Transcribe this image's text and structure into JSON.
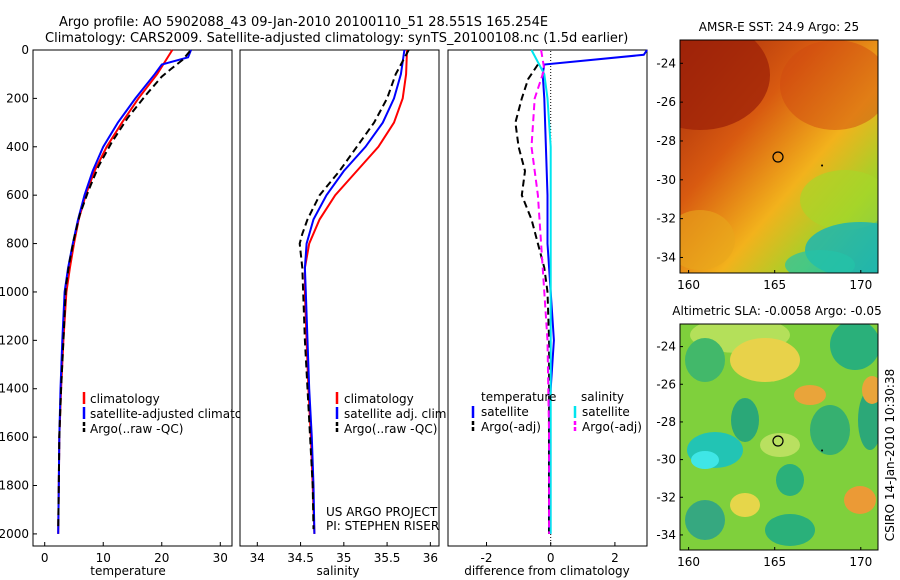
{
  "header": {
    "title_line1": "Argo profile: AO 5902088_43 09-Jan-2010 20100110_51 28.551S 165.254E",
    "title_line2": "Climatology: CARS2009. Satellite-adjusted climatology: synTS_20100108.nc (1.5d earlier)"
  },
  "credits": {
    "project": "US ARGO PROJECT",
    "pi": "PI: STEPHEN RISER",
    "stamp": "CSIRO 14-Jan-2010 10:30:38"
  },
  "colors": {
    "climatology": "#ff0000",
    "satellite": "#0000ff",
    "argo": "#000000",
    "sat_salinity": "#00e5ee",
    "argo_salinity": "#ff00ff"
  },
  "chart_data": [
    {
      "type": "line",
      "title": "",
      "xlabel": "temperature",
      "ylabel": "",
      "xlim": [
        -2,
        32
      ],
      "ylim": [
        2050,
        0
      ],
      "xticks": [
        "0",
        "10",
        "20",
        "30"
      ],
      "yticks": [
        "0",
        "200",
        "400",
        "600",
        "800",
        "1000",
        "1200",
        "1400",
        "1600",
        "1800",
        "2000"
      ],
      "legend": [
        "climatology",
        "satellite-adjusted climatology",
        "Argo(..raw -QC)"
      ],
      "series": [
        {
          "name": "climatology",
          "color": "#ff0000",
          "dash": "",
          "x": [
            21.8,
            20.5,
            19.2,
            16.0,
            13.2,
            10.6,
            8.5,
            7.0,
            5.8,
            5.0,
            4.3,
            3.7,
            3.2,
            2.8,
            2.5,
            2.4,
            2.3
          ],
          "y": [
            0,
            50,
            100,
            200,
            300,
            400,
            500,
            600,
            700,
            800,
            900,
            1000,
            1200,
            1400,
            1600,
            1800,
            2000
          ]
        },
        {
          "name": "satellite-adjusted climatology",
          "color": "#0000ff",
          "dash": "",
          "x": [
            25.0,
            24.5,
            20.0,
            18.8,
            15.5,
            12.5,
            10.0,
            8.2,
            6.8,
            5.7,
            4.8,
            4.0,
            3.4,
            3.0,
            2.7,
            2.5,
            2.4,
            2.3
          ],
          "y": [
            0,
            30,
            60,
            100,
            200,
            300,
            400,
            500,
            600,
            700,
            800,
            900,
            1000,
            1200,
            1400,
            1600,
            1800,
            2000
          ]
        },
        {
          "name": "Argo(..raw -QC)",
          "color": "#000000",
          "dash": "7,4",
          "x": [
            24.8,
            23.6,
            21.5,
            20.0,
            17.5,
            14.2,
            11.5,
            9.2,
            7.5,
            6.0,
            5.0,
            4.2,
            3.6,
            3.2,
            2.8,
            2.5,
            2.4,
            2.3
          ],
          "y": [
            5,
            40,
            80,
            110,
            180,
            280,
            380,
            480,
            580,
            680,
            780,
            880,
            980,
            1200,
            1400,
            1600,
            1800,
            1980
          ]
        }
      ]
    },
    {
      "type": "line",
      "title": "",
      "xlabel": "salinity",
      "ylabel": "",
      "xlim": [
        33.8,
        36.1
      ],
      "ylim": [
        2050,
        0
      ],
      "xticks": [
        "34",
        "34.5",
        "35",
        "35.5",
        "36"
      ],
      "legend": [
        "climatology",
        "satellite adj. clim.",
        "Argo(..raw -QC)"
      ],
      "series": [
        {
          "name": "climatology",
          "color": "#ff0000",
          "dash": "",
          "x": [
            35.73,
            35.72,
            35.68,
            35.58,
            35.4,
            35.15,
            34.9,
            34.72,
            34.6,
            34.55,
            34.55,
            34.57,
            34.59,
            34.62,
            34.64,
            34.66
          ],
          "y": [
            0,
            100,
            200,
            300,
            400,
            500,
            600,
            700,
            800,
            900,
            1000,
            1200,
            1400,
            1600,
            1800,
            2000
          ]
        },
        {
          "name": "satellite adj. clim.",
          "color": "#0000ff",
          "dash": "",
          "x": [
            35.7,
            35.66,
            35.58,
            35.45,
            35.25,
            35.0,
            34.8,
            34.65,
            34.57,
            34.55,
            34.56,
            34.58,
            34.6,
            34.63,
            34.65,
            34.66
          ],
          "y": [
            0,
            100,
            200,
            300,
            400,
            500,
            600,
            700,
            800,
            900,
            1000,
            1200,
            1400,
            1600,
            1800,
            2000
          ]
        },
        {
          "name": "Argo(..raw -QC)",
          "color": "#000000",
          "dash": "7,4",
          "x": [
            35.75,
            35.6,
            35.5,
            35.35,
            35.15,
            34.95,
            34.72,
            34.58,
            34.52,
            34.49,
            34.52,
            34.55,
            34.58,
            34.61,
            34.64,
            34.65
          ],
          "y": [
            0,
            100,
            200,
            300,
            400,
            500,
            600,
            700,
            760,
            800,
            900,
            1200,
            1400,
            1600,
            1800,
            1980
          ]
        }
      ]
    },
    {
      "type": "line",
      "title": "",
      "xlabel": "difference from climatology",
      "ylabel": "",
      "xlim": [
        -3.2,
        3.0
      ],
      "ylim": [
        2050,
        0
      ],
      "xticks": [
        "-2",
        "0",
        "2"
      ],
      "legend_temperature_heading": "temperature",
      "legend_salinity_heading": "salinity",
      "legend_temperature": [
        "satellite",
        "Argo(-adj)"
      ],
      "legend_salinity": [
        "satellite",
        "Argo(-adj)"
      ],
      "series": [
        {
          "name": "temperature satellite",
          "color": "#0000ff",
          "dash": "",
          "x": [
            3.0,
            2.9,
            -0.2,
            -0.25,
            -0.2,
            -0.15,
            -0.1,
            -0.1,
            -0.05,
            0.0,
            0.05,
            0.1,
            0.05,
            0.0,
            -0.05,
            -0.05,
            -0.05
          ],
          "y": [
            0,
            20,
            60,
            100,
            200,
            400,
            600,
            800,
            900,
            1000,
            1100,
            1200,
            1300,
            1400,
            1600,
            1800,
            2000
          ]
        },
        {
          "name": "temperature Argo(-adj)",
          "color": "#000000",
          "dash": "7,4",
          "x": [
            -0.4,
            -0.7,
            -0.9,
            -1.1,
            -1.0,
            -0.8,
            -0.9,
            -0.6,
            -0.4,
            -0.2,
            -0.1,
            -0.05,
            -0.05,
            -0.05
          ],
          "y": [
            60,
            120,
            200,
            300,
            400,
            500,
            600,
            700,
            800,
            900,
            1000,
            1200,
            1600,
            2000
          ]
        },
        {
          "name": "salinity satellite",
          "color": "#00e5ee",
          "dash": "",
          "x": [
            -0.6,
            -0.4,
            -0.2,
            -0.1,
            0.0,
            0.0,
            0.0,
            0.0,
            0.0,
            0.0,
            0.0
          ],
          "y": [
            0,
            50,
            100,
            200,
            400,
            600,
            800,
            1000,
            1400,
            1800,
            2000
          ]
        },
        {
          "name": "salinity Argo(-adj)",
          "color": "#ff00ff",
          "dash": "7,4",
          "x": [
            -0.3,
            -0.2,
            -0.5,
            -0.6,
            -0.4,
            -0.3,
            -0.2,
            -0.1,
            -0.05,
            -0.05
          ],
          "y": [
            0,
            80,
            200,
            400,
            600,
            800,
            1000,
            1200,
            1600,
            2000
          ]
        }
      ]
    },
    {
      "type": "heatmap",
      "title": "AMSR-E SST: 24.9 Argo: 25",
      "xlim": [
        159.5,
        171
      ],
      "ylim": [
        -34.8,
        -22.8
      ],
      "xticks": [
        "160",
        "165",
        "170"
      ],
      "yticks": [
        "-24",
        "-26",
        "-28",
        "-30",
        "-32",
        "-34"
      ],
      "argo_position": {
        "lon": 165.25,
        "lat": -28.55
      },
      "colorscale": "jet-like SST (warm north, cool south-east)"
    },
    {
      "type": "heatmap",
      "title": "Altimetric SLA: -0.0058 Argo: -0.05",
      "xlim": [
        159.5,
        171
      ],
      "ylim": [
        -34.8,
        -22.8
      ],
      "xticks": [
        "160",
        "165",
        "170"
      ],
      "yticks": [
        "-24",
        "-26",
        "-28",
        "-30",
        "-32",
        "-34"
      ],
      "argo_position": {
        "lon": 165.25,
        "lat": -28.55
      },
      "colorscale": "jet-like SLA (greens with cyan and orange patches)"
    }
  ]
}
